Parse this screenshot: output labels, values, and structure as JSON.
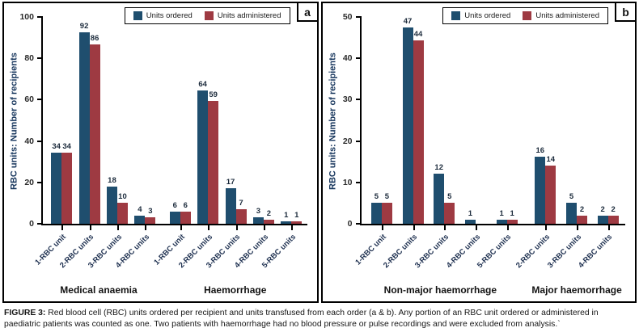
{
  "colors": {
    "ordered": "#1F4E6E",
    "administered": "#9E3A42",
    "axis_title_text": "#17365D",
    "border": "#000000"
  },
  "legend": {
    "ordered_label": "Units ordered",
    "administered_label": "Units administered"
  },
  "caption": {
    "prefix": "FIGURE 3:",
    "body": "Red blood cell (RBC) units ordered per recipient and units transfused from each order (a & b). Any portion of an RBC unit ordered or administered in paediatric patients was counted as one. Two patients with haemorrhage had no blood pressure or pulse recordings and were excluded from analysis.`"
  },
  "chart_data": [
    {
      "type": "bar",
      "panel_label": "a",
      "ylabel": "RBC units: Number of recipients",
      "ylim": [
        0,
        100
      ],
      "yticks": [
        0,
        20,
        40,
        60,
        80,
        100
      ],
      "grid": false,
      "legend_position": "top-right",
      "series_names": [
        "Units ordered",
        "Units administered"
      ],
      "sections": [
        {
          "label": "Medical anaemia",
          "categories": [
            "1-RBC unit",
            "2-RBC units",
            "3-RBC units",
            "4-RBC units"
          ],
          "series": {
            "ordered": [
              34,
              92,
              18,
              4
            ],
            "administered": [
              34,
              86,
              10,
              3
            ]
          }
        },
        {
          "label": "Haemorrhage",
          "categories": [
            "1-RBC unit",
            "2-RBC units",
            "3-RBC units",
            "4-RBC units",
            "5-RBC units"
          ],
          "series": {
            "ordered": [
              6,
              64,
              17,
              3,
              1
            ],
            "administered": [
              6,
              59,
              7,
              2,
              1
            ]
          }
        }
      ]
    },
    {
      "type": "bar",
      "panel_label": "b",
      "ylabel": "RBC units: Number of recipients",
      "ylim": [
        0,
        50
      ],
      "yticks": [
        0,
        10,
        20,
        30,
        40,
        50
      ],
      "grid": false,
      "legend_position": "top-right",
      "series_names": [
        "Units ordered",
        "Units administered"
      ],
      "sections": [
        {
          "label": "Non-major haemorrhage",
          "categories": [
            "1-RBC unit",
            "2-RBC units",
            "3-RBC units",
            "4-RBC units",
            "5-RBC units"
          ],
          "series": {
            "ordered": [
              5,
              47,
              12,
              1,
              1
            ],
            "administered": [
              5,
              44,
              5,
              0,
              1
            ]
          }
        },
        {
          "label": "Major haemorrhage",
          "categories": [
            "2-RBC units",
            "3-RBC units",
            "4-RBC units"
          ],
          "series": {
            "ordered": [
              16,
              5,
              2
            ],
            "administered": [
              14,
              2,
              2
            ]
          }
        }
      ]
    }
  ]
}
